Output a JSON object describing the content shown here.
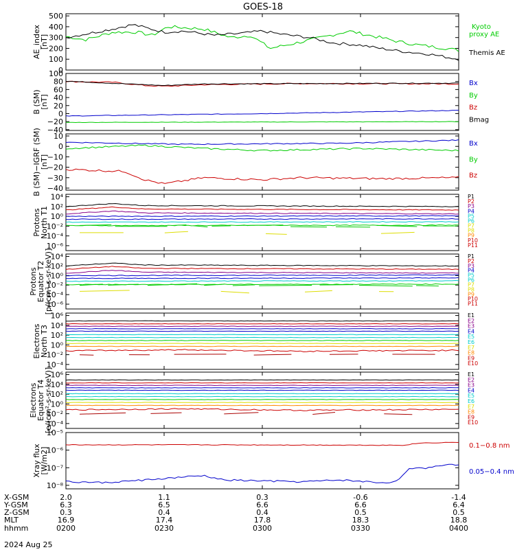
{
  "title": "GOES-18",
  "date_label": "2024 Aug 25",
  "time_axis": {
    "row_labels": [
      "X-GSM",
      "Y-GSM",
      "Z-GSM",
      "MLT",
      "hhmm"
    ],
    "columns": [
      {
        "values": [
          "2.0",
          "6.3",
          "0.3",
          "16.9",
          "0200"
        ]
      },
      {
        "values": [
          "1.1",
          "6.5",
          "0.4",
          "17.4",
          "0230"
        ]
      },
      {
        "values": [
          "0.3",
          "6.6",
          "0.4",
          "17.8",
          "0300"
        ]
      },
      {
        "values": [
          "-0.6",
          "6.6",
          "0.5",
          "18.3",
          "0330"
        ]
      },
      {
        "values": [
          "-1.4",
          "6.4",
          "0.5",
          "18.8",
          "0400"
        ]
      }
    ]
  },
  "colors": {
    "black": "#000000",
    "red": "#cc0000",
    "green": "#00cc00",
    "blue": "#0000cc",
    "purple": "#880088",
    "cyan": "#00cccc",
    "yellow": "#dddd00",
    "orange": "#ff8800"
  },
  "chart_data": [
    {
      "type": "line",
      "ylabel": "AE_index [nT]",
      "yticks": [
        "500",
        "400",
        "300",
        "200",
        "100",
        "0"
      ],
      "ylim": [
        0,
        520
      ],
      "x": [
        "0200",
        "0400"
      ],
      "series": [
        {
          "name": "Kyoto proxy AE",
          "color": "#00cc00"
        },
        {
          "name": "Themis AE",
          "color": "#000000"
        }
      ]
    },
    {
      "type": "line",
      "ylabel": "B (SM) [nT]",
      "yticks": [
        "100",
        "80",
        "60",
        "40",
        "20",
        "0",
        "−20",
        "−40"
      ],
      "ylim": [
        -42,
        100
      ],
      "series": [
        {
          "name": "Bx",
          "color": "#0000cc"
        },
        {
          "name": "By",
          "color": "#00cc00"
        },
        {
          "name": "Bz",
          "color": "#cc0000"
        },
        {
          "name": "Bmag",
          "color": "#000000"
        }
      ]
    },
    {
      "type": "line",
      "ylabel": "B (SM)−IGRF (SM) [nT]",
      "yticks": [
        "10",
        "0",
        "−10",
        "−20",
        "−30",
        "−40"
      ],
      "ylim": [
        -42,
        12
      ],
      "series": [
        {
          "name": "Bx",
          "color": "#0000cc"
        },
        {
          "name": "By",
          "color": "#00cc00"
        },
        {
          "name": "Bz",
          "color": "#cc0000"
        }
      ]
    },
    {
      "type": "line",
      "ylabel": "Protons North T1",
      "yticks": [
        "10⁴",
        "10²",
        "10⁰",
        "10⁻²",
        "10⁻⁴",
        "10⁻⁶"
      ],
      "ylim": [
        -7,
        4.5
      ],
      "scale": "log",
      "legend": [
        "P1",
        "P2",
        "P3",
        "P4",
        "P5",
        "P6",
        "P7",
        "P8",
        "P9",
        "P10",
        "P11"
      ]
    },
    {
      "type": "line",
      "ylabel": "Protons Equator T2 [p/(cm²-s-sr-keV)]",
      "yticks": [
        "10⁴",
        "10²",
        "10⁰",
        "10⁻²",
        "10⁻⁴",
        "10⁻⁶"
      ],
      "ylim": [
        -7,
        4.5
      ],
      "scale": "log",
      "legend": [
        "P1",
        "P2",
        "P3",
        "P4",
        "P5",
        "P6",
        "P7",
        "P8",
        "P9",
        "P10",
        "P11"
      ]
    },
    {
      "type": "line",
      "ylabel": "Electrons North T3",
      "yticks": [
        "10⁶",
        "10⁴",
        "10²",
        "10⁰",
        "10⁻²",
        "10⁻⁴"
      ],
      "ylim": [
        -5,
        6.5
      ],
      "scale": "log",
      "legend": [
        "E1",
        "E2",
        "E3",
        "E4",
        "E5",
        "E6",
        "E7",
        "E8",
        "E9",
        "E10"
      ]
    },
    {
      "type": "line",
      "ylabel": "Electrons Equator T4 [e/(cm²-s-sr-keV)]",
      "yticks": [
        "10⁶",
        "10⁴",
        "10²",
        "10⁰",
        "10⁻²",
        "10⁻⁴"
      ],
      "ylim": [
        -5,
        6.5
      ],
      "scale": "log",
      "legend": [
        "E1",
        "E2",
        "E3",
        "E4",
        "E5",
        "E6",
        "E7",
        "E8",
        "E9",
        "E10"
      ]
    },
    {
      "type": "line",
      "ylabel": "Xray flux [W/m2]",
      "yticks": [
        "10⁻⁵",
        "10⁻⁶",
        "10⁻⁷",
        "10⁻⁸"
      ],
      "ylim": [
        -8.2,
        -5
      ],
      "scale": "log",
      "series": [
        {
          "name": "0.1−0.8 nm",
          "color": "#cc0000"
        },
        {
          "name": "0.05−0.4 nm",
          "color": "#0000cc"
        }
      ]
    }
  ]
}
